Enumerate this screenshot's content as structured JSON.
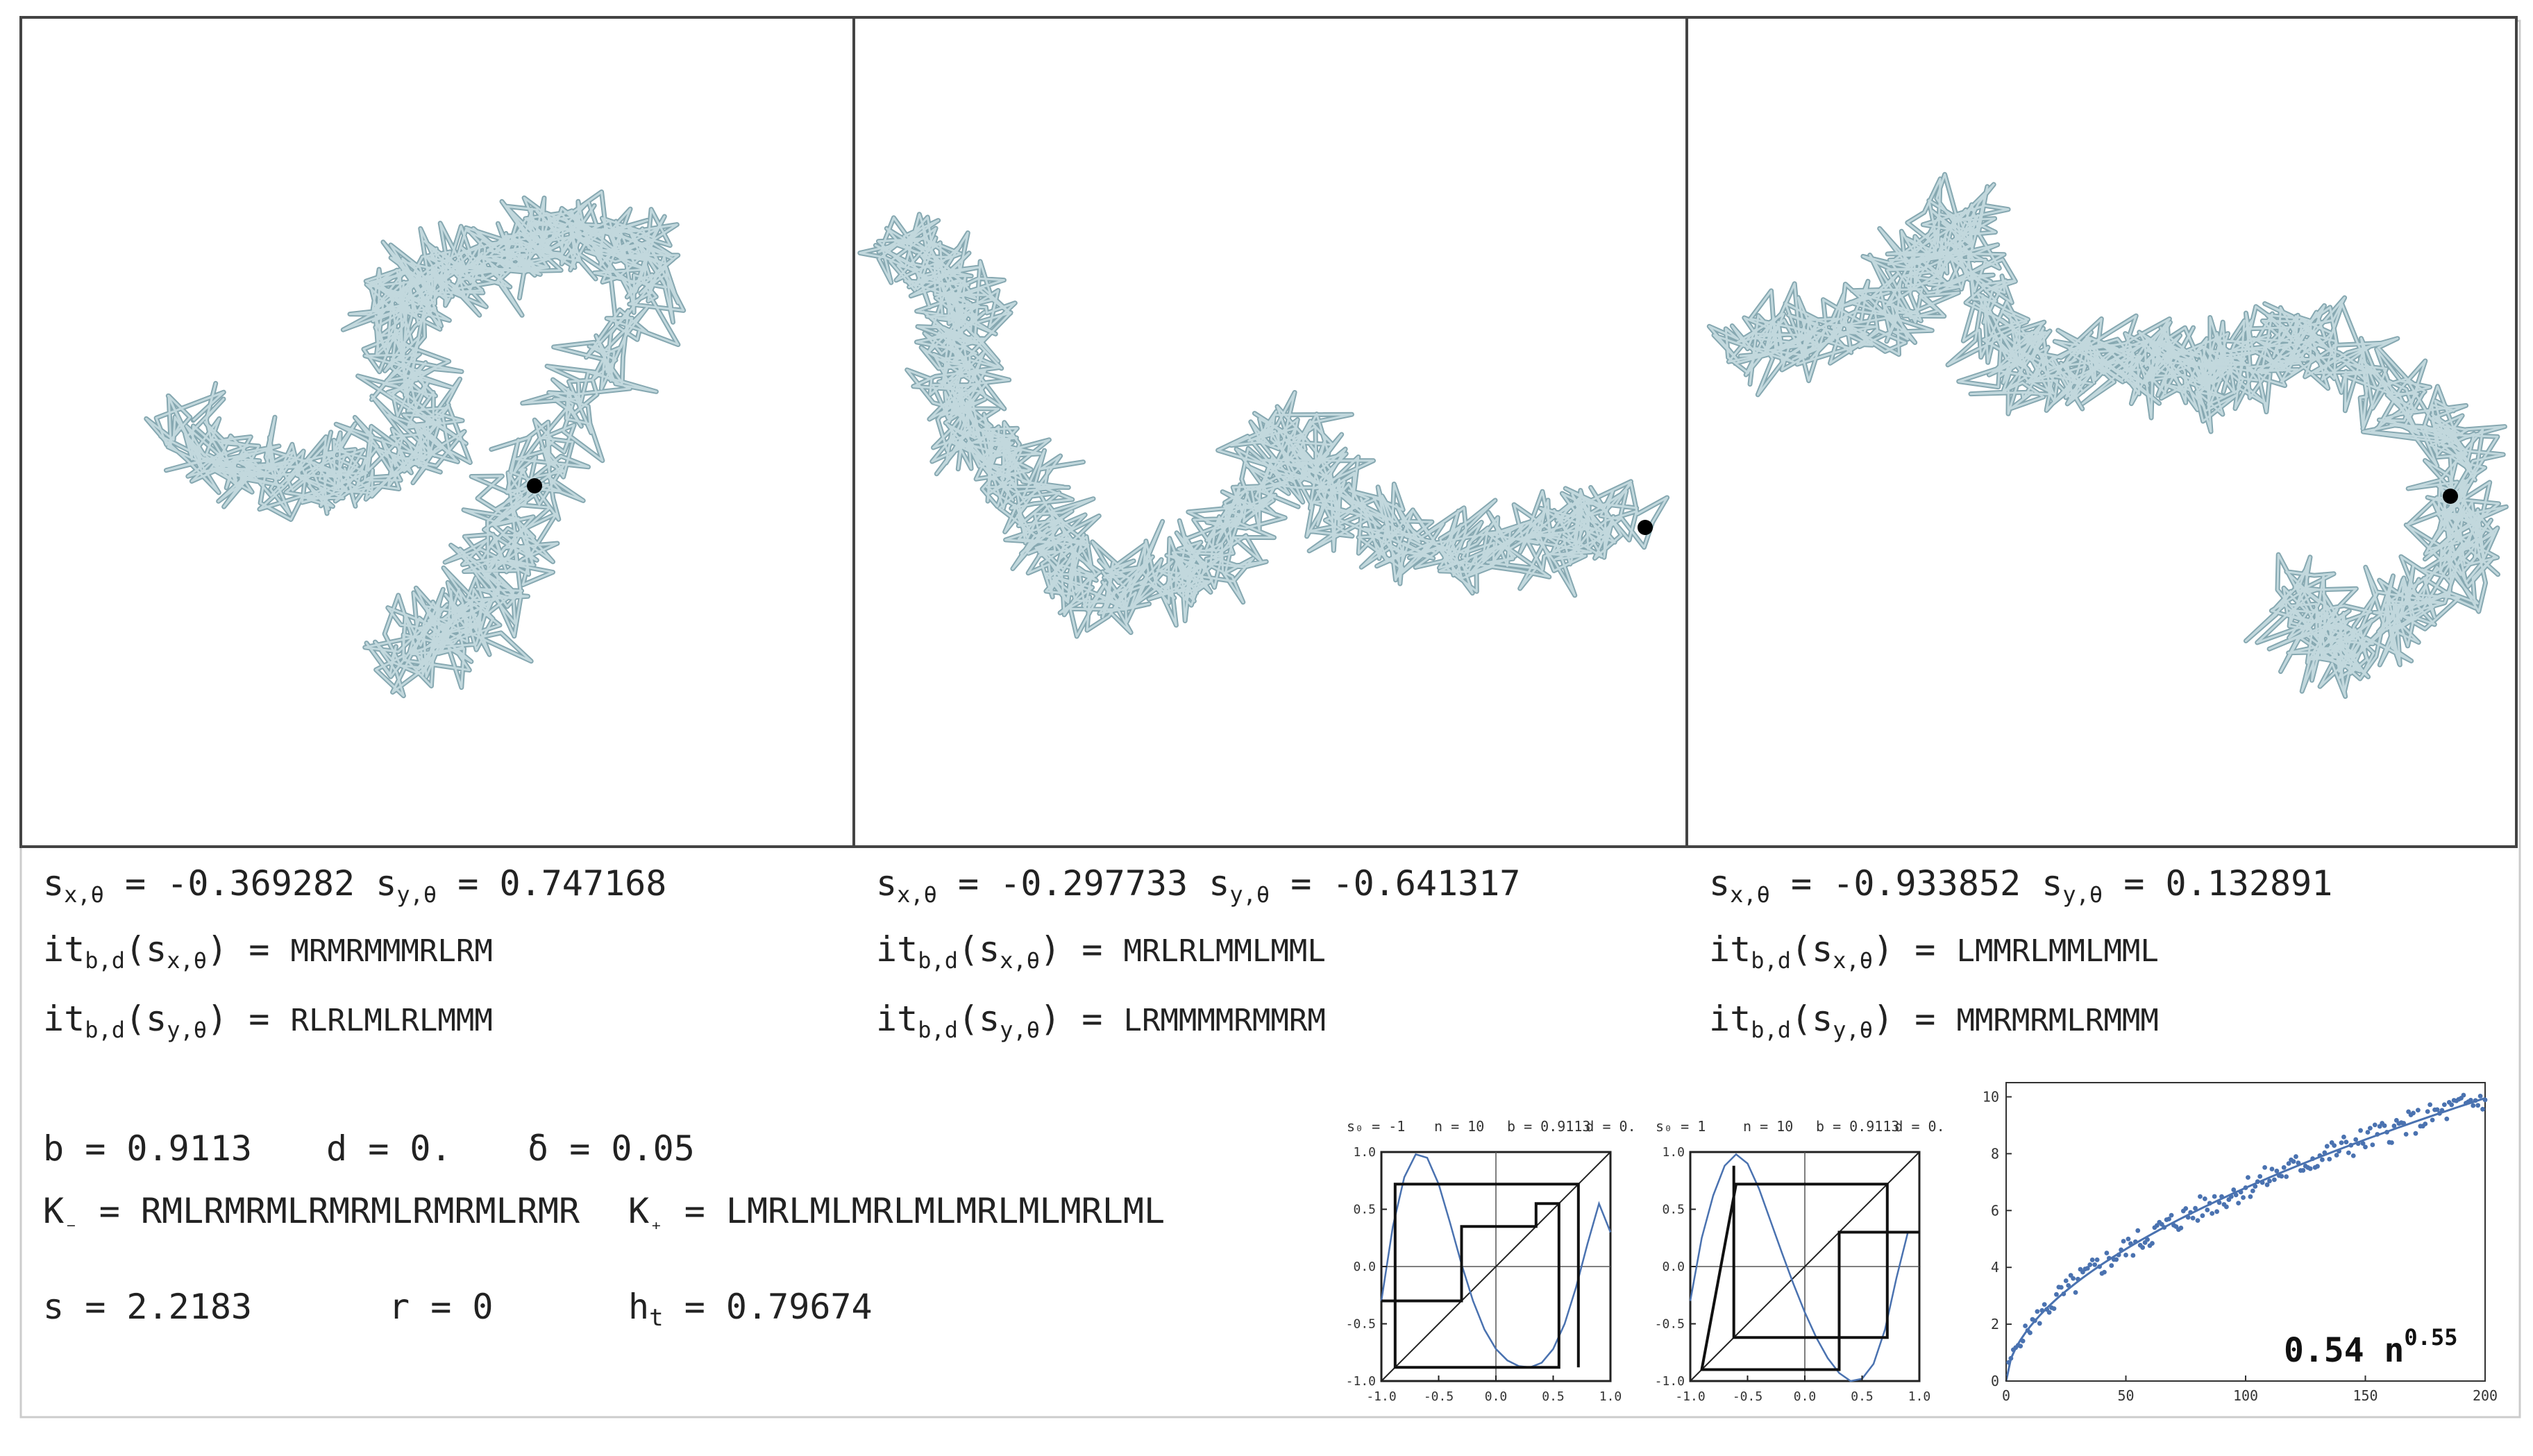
{
  "panels": [
    {
      "sx0": "-0.369282",
      "sy0": "0.747168",
      "itsx": "MRMRMMMRLRM",
      "itsy": "RLRLMLRLMMM",
      "seed": 11
    },
    {
      "sx0": "-0.297733",
      "sy0": "-0.641317",
      "itsx": "MRLRLMMLMML",
      "itsy": "LRMMMMRMMRM",
      "seed": 23
    },
    {
      "sx0": "-0.933852",
      "sy0": "0.132891",
      "itsx": "LMMRLMMLMML",
      "itsy": "MMRMRMLRMMM",
      "seed": 37
    }
  ],
  "params": {
    "b": "0.9113",
    "d": "0.",
    "delta": "0.05",
    "kminus": "RMLRMRMLRMRMLRMRMLRMR",
    "kplus": "LMRLMLMRLMLMRLMLMRLML",
    "s": "2.2183",
    "r": "0",
    "ht": "0.79674"
  },
  "labels": {
    "sx_sym": "s",
    "sy_sym": "s",
    "it_sym": "it",
    "sub_x0": "x,θ",
    "sub_y0": "y,θ",
    "sub_bd": "b,d",
    "b_lbl": "b",
    "d_lbl": "d",
    "delta_lbl": "δ",
    "kminus_lbl": "K",
    "kminus_sub": "₋",
    "kplus_lbl": "K",
    "kplus_sub": "₊",
    "s_lbl": "s",
    "r_lbl": "r",
    "ht_lbl": "h",
    "ht_sub": "t",
    "eq": "="
  },
  "chart_data": [
    {
      "type": "line",
      "header": [
        "s₀ = -1",
        "n = 10",
        "b = 0.9113",
        "d = 0."
      ],
      "xlim": [
        -1.0,
        1.0
      ],
      "ylim": [
        -1.0,
        1.0
      ],
      "xticks": [
        "-1.0",
        "-0.5",
        "0.0",
        "0.5",
        "1.0"
      ],
      "yticks": [
        "1.0",
        "0.5",
        "0.0",
        "-0.5",
        "-1.0"
      ],
      "series": [
        {
          "values_note": "",
          "x": [
            -1.0,
            -0.9,
            -0.8,
            -0.7,
            -0.6,
            -0.5,
            -0.4,
            -0.3,
            -0.2,
            -0.1,
            0.0,
            0.1,
            0.2,
            0.3,
            0.4,
            0.5,
            0.6,
            0.7,
            0.8,
            0.9,
            1.0
          ],
          "y": [
            -0.3,
            0.35,
            0.78,
            0.98,
            0.95,
            0.72,
            0.38,
            0.02,
            -0.3,
            -0.55,
            -0.72,
            -0.82,
            -0.87,
            -0.88,
            -0.84,
            -0.72,
            -0.5,
            -0.18,
            0.2,
            0.55,
            0.3
          ]
        }
      ],
      "staircase": [
        [
          -1.0,
          -0.3
        ],
        [
          -0.3,
          -0.3
        ],
        [
          -0.3,
          0.35
        ],
        [
          0.35,
          0.35
        ],
        [
          0.35,
          0.55
        ],
        [
          0.55,
          0.55
        ],
        [
          0.55,
          -0.88
        ],
        [
          -0.88,
          -0.88
        ],
        [
          -0.88,
          0.72
        ],
        [
          0.72,
          0.72
        ],
        [
          0.72,
          -0.88
        ]
      ]
    },
    {
      "type": "line",
      "header": [
        "s₀ = 1",
        "n = 10",
        "b = 0.9113",
        "d = 0."
      ],
      "xlim": [
        -1.0,
        1.0
      ],
      "ylim": [
        -1.0,
        1.0
      ],
      "xticks": [
        "-1.0",
        "-0.5",
        "0.0",
        "0.5",
        "1.0"
      ],
      "yticks": [
        "1.0",
        "0.5",
        "0.0",
        "-0.5",
        "-1.0"
      ],
      "series": [
        {
          "x": [
            -1.0,
            -0.9,
            -0.8,
            -0.7,
            -0.6,
            -0.5,
            -0.4,
            -0.3,
            -0.2,
            -0.1,
            0.0,
            0.1,
            0.2,
            0.3,
            0.4,
            0.5,
            0.6,
            0.7,
            0.8,
            0.9,
            1.0
          ],
          "y": [
            -0.3,
            0.25,
            0.62,
            0.88,
            0.98,
            0.9,
            0.68,
            0.4,
            0.12,
            -0.15,
            -0.4,
            -0.62,
            -0.8,
            -0.93,
            -1.0,
            -0.98,
            -0.85,
            -0.55,
            -0.1,
            0.3,
            0.3
          ]
        }
      ],
      "staircase": [
        [
          1.0,
          0.3
        ],
        [
          0.3,
          0.3
        ],
        [
          0.3,
          -0.9
        ],
        [
          -0.9,
          -0.9
        ],
        [
          -0.9,
          -0.9
        ],
        [
          -0.6,
          0.72
        ],
        [
          0.72,
          0.72
        ],
        [
          0.72,
          -0.62
        ],
        [
          -0.62,
          -0.62
        ],
        [
          -0.62,
          0.88
        ]
      ]
    },
    {
      "type": "scatter",
      "annotation": "0.54 n",
      "annotation_sup": "0.55",
      "xlim": [
        0,
        200
      ],
      "ylim": [
        0,
        10.5
      ],
      "xticks": [
        "0",
        "50",
        "100",
        "150",
        "200"
      ],
      "yticks": [
        "0",
        "2",
        "4",
        "6",
        "8",
        "10"
      ],
      "fit": {
        "coef": 0.54,
        "exp": 0.55
      }
    }
  ]
}
